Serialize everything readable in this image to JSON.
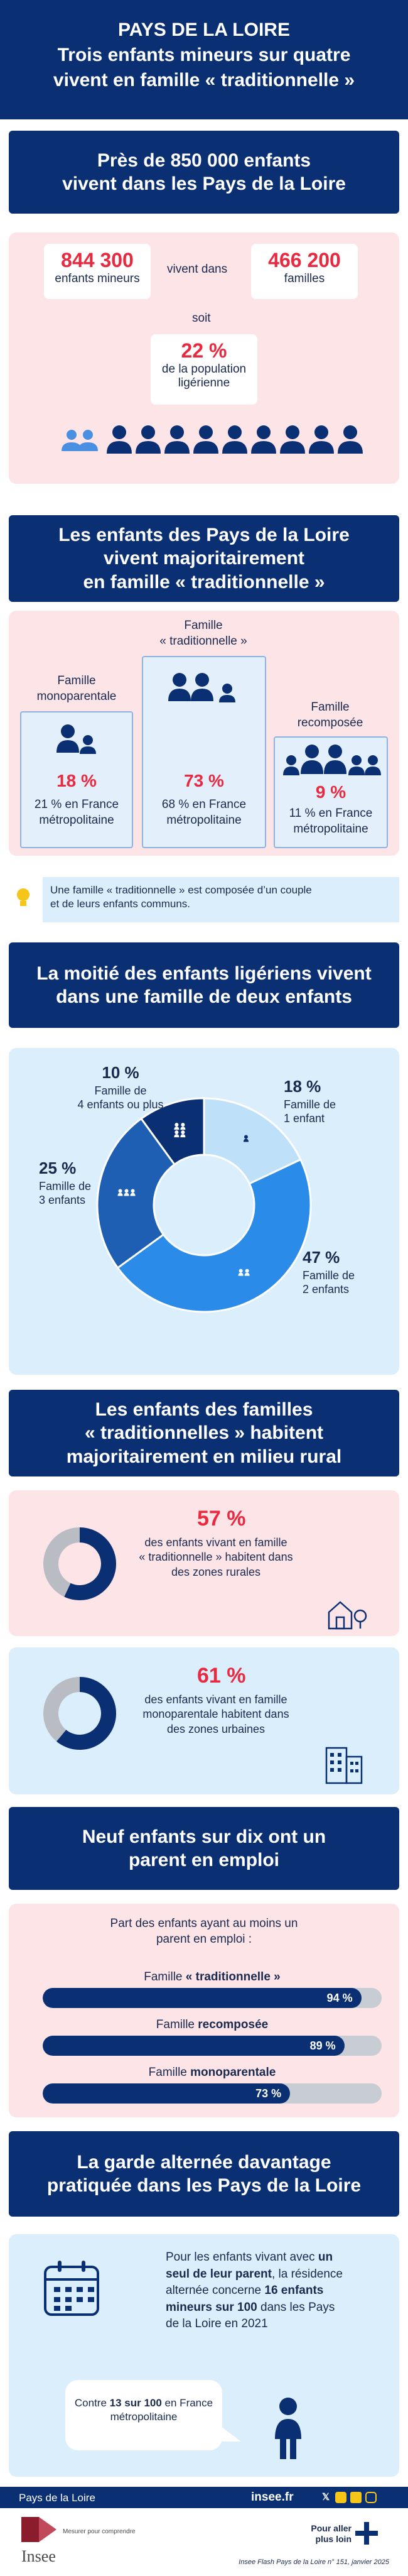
{
  "header": {
    "region": "PAYS DE LA LOIRE",
    "title_l1": "Trois enfants mineurs sur quatre",
    "title_l2": "vivent en famille « traditionnelle »"
  },
  "s1": {
    "title_l1": "Près de 850 000 enfants",
    "title_l2": "vivent dans les Pays de la Loire",
    "children_value": "844 300",
    "children_label": "enfants mineurs",
    "live_in": "vivent dans",
    "families_value": "466 200",
    "families_label": "familles",
    "soit": "soit",
    "pop_value": "22 %",
    "pop_label_l1": "de la population",
    "pop_label_l2": "ligérienne"
  },
  "s2": {
    "title_l1": "Les enfants des Pays de la Loire",
    "title_l2": "vivent majoritairement",
    "title_l3": "en famille « traditionnelle »",
    "mono_name_l1": "Famille",
    "mono_name_l2": "monoparentale",
    "mono_pct": "18 %",
    "mono_fr_l1": "21 % en France",
    "mono_fr_l2": "métropolitaine",
    "trad_name_l1": "Famille",
    "trad_name_l2": "« traditionnelle »",
    "trad_pct": "73 %",
    "trad_fr_l1": "68 % en France",
    "trad_fr_l2": "métropolitaine",
    "recomp_name_l1": "Famille",
    "recomp_name_l2": "recomposée",
    "recomp_pct": "9 %",
    "recomp_fr_l1": "11 % en France",
    "recomp_fr_l2": "métropolitaine",
    "note_l1": "Une famille « traditionnelle » est composée d’un couple",
    "note_l2": "et de leurs enfants communs."
  },
  "s3": {
    "title_l1": "La moitié des enfants ligériens vivent",
    "title_l2": "dans une famille de deux enfants"
  },
  "chart_data": {
    "type": "pie",
    "categories": [
      "Famille de 1 enfant",
      "Famille de 2 enfants",
      "Famille de 3 enfants",
      "Famille de 4 enfants ou plus"
    ],
    "values": [
      18,
      47,
      25,
      10
    ],
    "value_labels": [
      "18 %",
      "47 %",
      "25 %",
      "10 %"
    ],
    "label_lines": [
      [
        "Famille de",
        "1 enfant"
      ],
      [
        "Famille de",
        "2 enfants"
      ],
      [
        "Famille de",
        "3 enfants"
      ],
      [
        "Famille de",
        "4 enfants ou plus"
      ]
    ],
    "colors": [
      "#bfe0f9",
      "#2b8be8",
      "#1e5fb3",
      "#0b2f73"
    ],
    "donut": true
  },
  "s4": {
    "title_l1": "Les enfants des familles",
    "title_l2": "« traditionnelles » habitent",
    "title_l3": "majoritairement en milieu rural",
    "rural_pct": "57 %",
    "rural_value": 57,
    "rural_l1": "des enfants vivant en famille",
    "rural_l2": "« traditionnelle » habitent dans",
    "rural_l3": "des zones rurales",
    "urban_pct": "61 %",
    "urban_value": 61,
    "urban_l1": "des enfants vivant en famille",
    "urban_l2": "monoparentale habitent dans",
    "urban_l3": "des zones urbaines"
  },
  "s5": {
    "title_l1": "Neuf enfants sur dix ont un",
    "title_l2": "parent en emploi",
    "intro_l1": "Part des enfants ayant au moins un",
    "intro_l2": "parent en emploi :",
    "bars": [
      {
        "prefix": "Famille ",
        "bold": "« traditionnelle »",
        "value": 94,
        "label": "94 %"
      },
      {
        "prefix": "Famille ",
        "bold": "recomposée",
        "value": 89,
        "label": "89 %"
      },
      {
        "prefix": "Famille ",
        "bold": "monoparentale",
        "value": 73,
        "label": "73 %"
      }
    ]
  },
  "s6": {
    "title_l1": "La garde alternée davantage",
    "title_l2": "pratiquée dans les Pays de la Loire",
    "t1": "Pour les enfants vivant avec ",
    "t1b": "un",
    "t2b": "seul de leur parent",
    "t2": ", la résidence",
    "t3": "alternée concerne ",
    "t3b": "16 enfants",
    "t4b": "mineurs sur 100",
    "t4": " dans les Pays",
    "t5": "de la Loire en 2021",
    "fr_pre": "Contre ",
    "fr_bold": "13 sur 100",
    "fr_post": " en France",
    "fr_l2": "métropolitaine"
  },
  "footer": {
    "region": "Pays de la Loire",
    "site": "insee.fr",
    "logo": "Insee",
    "tagline_l1": "Mesurer pour comprendre",
    "more_l1": "Pour aller",
    "more_l2": "plus loin",
    "ref": "Insee Flash Pays de la Loire n° 151, janvier 2025"
  }
}
